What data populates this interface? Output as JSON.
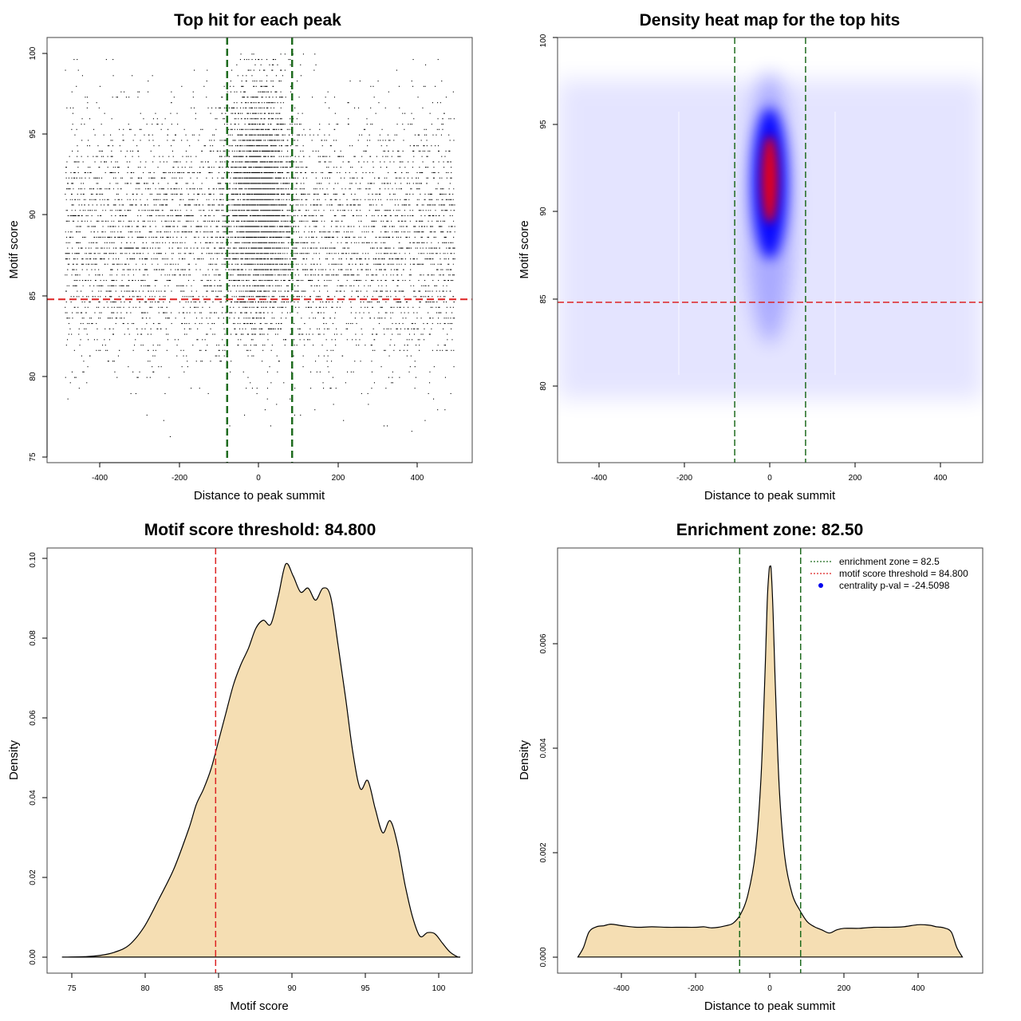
{
  "panels": {
    "scatter": {
      "title": "Top hit for each peak",
      "xlabel": "Distance to peak summit",
      "ylabel": "Motif score",
      "xticks": [
        "-400",
        "-200",
        "0",
        "200",
        "400"
      ],
      "yticks": [
        "75",
        "80",
        "85",
        "90",
        "95",
        "100"
      ]
    },
    "heatmap": {
      "title": "Density heat map for the top hits",
      "xlabel": "Distance to peak summit",
      "ylabel": "Motif score",
      "xticks": [
        "-400",
        "-200",
        "0",
        "200",
        "400"
      ],
      "yticks": [
        "80",
        "85",
        "90",
        "95",
        "100"
      ]
    },
    "score_density": {
      "title": "Motif score threshold: 84.800",
      "xlabel": "Motif score",
      "ylabel": "Density",
      "xticks": [
        "75",
        "80",
        "85",
        "90",
        "95",
        "100"
      ],
      "yticks": [
        "0.00",
        "0.02",
        "0.04",
        "0.06",
        "0.08",
        "0.10"
      ]
    },
    "distance_density": {
      "title": "Enrichment zone: 82.50",
      "xlabel": "Distance to peak summit",
      "ylabel": "Density",
      "xticks": [
        "-400",
        "-200",
        "0",
        "200",
        "400"
      ],
      "yticks": [
        "0.000",
        "0.002",
        "0.004",
        "0.006"
      ],
      "legend": [
        "enrichment zone = 82.5",
        "motif score threshold = 84.800",
        "centrality p-val = -24.5098"
      ]
    }
  },
  "colors": {
    "enrichment_line": "#1e6b1e",
    "threshold_line": "#dd2222",
    "density_fill": "#f5deb3",
    "heat_low": "#0000ff",
    "heat_high": "#ff0000"
  },
  "chart_data": [
    {
      "type": "scatter",
      "title": "Top hit for each peak",
      "xlabel": "Distance to peak summit",
      "ylabel": "Motif score",
      "xlim": [
        -540,
        540
      ],
      "ylim": [
        74.7,
        101
      ],
      "enrichment_zone": [
        -82.5,
        82.5
      ],
      "threshold": 84.8,
      "background_uniform": {
        "x_range": [
          -495,
          495
        ],
        "score_mean": 88.5,
        "score_sd": 3.8
      },
      "central_cluster": {
        "x_center": 0,
        "x_sd": 40,
        "score_mean": 91,
        "score_sd": 3.5
      }
    },
    {
      "type": "heatmap",
      "title": "Density heat map for the top hits",
      "xlabel": "Distance to peak summit",
      "ylabel": "Motif score",
      "xlim": [
        -495,
        495
      ],
      "ylim": [
        75.6,
        100
      ],
      "enrichment_zone": [
        -82.5,
        82.5
      ],
      "threshold": 84.8,
      "peak": {
        "x": 0,
        "score": 92.5
      }
    },
    {
      "type": "area",
      "title": "Motif score threshold: 84.800",
      "xlabel": "Motif score",
      "ylabel": "Density",
      "xlim": [
        73.5,
        102
      ],
      "ylim": [
        -0.004,
        0.102
      ],
      "threshold": 84.8,
      "x": [
        74.5,
        76,
        77,
        78,
        79,
        80,
        81,
        82,
        83,
        83.5,
        84,
        84.5,
        85,
        85.5,
        86,
        86.5,
        87,
        87.5,
        88,
        88.5,
        89,
        89.5,
        90,
        90.5,
        91,
        91.5,
        92,
        92.5,
        93,
        93.5,
        94,
        94.5,
        95,
        95.5,
        96,
        96.5,
        97,
        97.5,
        98,
        98.5,
        99,
        99.5,
        100,
        100.5,
        101,
        101.2
      ],
      "y": [
        0,
        0.0001,
        0.0004,
        0.0012,
        0.003,
        0.0075,
        0.0145,
        0.022,
        0.032,
        0.038,
        0.042,
        0.047,
        0.054,
        0.061,
        0.068,
        0.073,
        0.077,
        0.082,
        0.084,
        0.083,
        0.09,
        0.098,
        0.095,
        0.091,
        0.092,
        0.089,
        0.092,
        0.09,
        0.078,
        0.065,
        0.051,
        0.042,
        0.044,
        0.037,
        0.031,
        0.034,
        0.028,
        0.018,
        0.01,
        0.0052,
        0.0061,
        0.0058,
        0.0035,
        0.0013,
        0.0001,
        0
      ]
    },
    {
      "type": "area",
      "title": "Enrichment zone: 82.50",
      "xlabel": "Distance to peak summit",
      "ylabel": "Density",
      "xlim": [
        -575,
        575
      ],
      "ylim": [
        -0.00031,
        0.00785
      ],
      "enrichment_zone": [
        -82.5,
        82.5
      ],
      "x": [
        -520,
        -505,
        -490,
        -470,
        -450,
        -430,
        -400,
        -360,
        -320,
        -280,
        -240,
        -200,
        -180,
        -160,
        -140,
        -120,
        -100,
        -80,
        -60,
        -40,
        -25,
        -15,
        -8,
        -3,
        0,
        3,
        8,
        15,
        25,
        40,
        60,
        80,
        100,
        120,
        140,
        160,
        180,
        200,
        240,
        280,
        320,
        360,
        400,
        430,
        450,
        470,
        490,
        505,
        520
      ],
      "y": [
        0.0,
        0.00018,
        0.00048,
        0.00058,
        0.0006,
        0.00063,
        0.0006,
        0.00057,
        0.00058,
        0.00057,
        0.00057,
        0.00057,
        0.00058,
        0.00056,
        0.00057,
        0.0006,
        0.00065,
        0.00082,
        0.0012,
        0.002,
        0.0034,
        0.0052,
        0.0068,
        0.0074,
        0.0075,
        0.0074,
        0.0066,
        0.005,
        0.0032,
        0.0019,
        0.0012,
        0.0009,
        0.00068,
        0.00058,
        0.00052,
        0.00046,
        0.00052,
        0.00055,
        0.00055,
        0.00057,
        0.00057,
        0.00058,
        0.00062,
        0.00061,
        0.00058,
        0.00056,
        0.00048,
        0.00018,
        0.0
      ]
    }
  ]
}
